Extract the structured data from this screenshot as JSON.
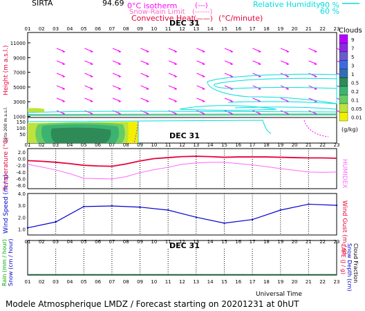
{
  "header": {
    "station": "SIRTA",
    "lon": "94.69",
    "isotherm_legend": "0°C isotherm",
    "isotherm_marker": "(---)",
    "snowrain_legend": "Snow-Rain Limit",
    "snowrain_marker": "(------)",
    "convheat_legend": "Convective Heat.",
    "convheat_marker": "(——)",
    "convheat_unit": "(°C/minute)",
    "rh_legend": "Relative Humidity",
    "rh_90": "90 %",
    "rh_60": "60 %",
    "date_label": "DEC 31",
    "colors": {
      "magenta": "#ff00ff",
      "red": "#e8003a",
      "cyan": "#00e0e0",
      "blue": "#0000cc"
    }
  },
  "hours": [
    "01",
    "02",
    "03",
    "04",
    "05",
    "06",
    "07",
    "08",
    "09",
    "10",
    "11",
    "12",
    "13",
    "14",
    "15",
    "16",
    "17",
    "18",
    "19",
    "20",
    "21",
    "22",
    "23"
  ],
  "panel1": {
    "ylabel": "Height (m a.s.l.)",
    "ylabel_low": "Up to 200 m a.s.l.",
    "yticks": [
      "11000",
      "9000",
      "7000",
      "5000",
      "3000",
      "1000"
    ],
    "yticks_low": [
      "150",
      "100",
      "50"
    ],
    "x_sub_ticks_label": "DEC 31"
  },
  "clouds": {
    "title": "Clouds",
    "levels": [
      "9",
      "7",
      "5",
      "3",
      "1",
      "0.5",
      "0.2",
      "0.1",
      "0.05",
      "0.01"
    ],
    "colors": [
      "#b800ff",
      "#8a2be2",
      "#6a5acd",
      "#4169e1",
      "#3070b0",
      "#2e8b57",
      "#3cb371",
      "#66cc66",
      "#bde33c",
      "#f0f000"
    ],
    "unit": "(g/kg)"
  },
  "panel2": {
    "ylabel": "Temperature (°C)",
    "ylabel_right": "HUMIDEX",
    "yticks": [
      "2.0",
      "0.0",
      "-2.0",
      "-4.0",
      "-6.0",
      "-8.0"
    ],
    "temp_color": "#e8003a",
    "humidex_color": "#ff66ff"
  },
  "panel3": {
    "ylabel": "Wind Speed (m / s)",
    "ylabel_right": "Wind Gust (m / s)",
    "yticks": [
      "4.0",
      "3.0",
      "2.0",
      "1.0"
    ],
    "line_color": "#0000cc"
  },
  "panel4": {
    "ylabel_a": "Rain (mm / hour)",
    "ylabel_b": "Snow (cm / hour)",
    "ylabel_right_a": "CAPE (J / g)",
    "ylabel_right_b": "Snow Depth (cm)",
    "ylabel_right_c": "Cloud Fraction",
    "date_label": "DEC 31",
    "xlabel": "Universal Time"
  },
  "footer": {
    "caption": "Modele Atmospherique LMDZ / Forecast starting on 20201231 at 0hUT"
  },
  "chart_data": [
    {
      "type": "line",
      "title": "",
      "xlabel": "Universal Time",
      "ylabel": "Temperature (°C)",
      "x": [
        "01",
        "02",
        "03",
        "04",
        "05",
        "06",
        "07",
        "08",
        "09",
        "10",
        "11",
        "12",
        "13",
        "14",
        "15",
        "16",
        "17",
        "18",
        "19",
        "20",
        "21",
        "22",
        "23"
      ],
      "ylim": [
        -9,
        3
      ],
      "series": [
        {
          "name": "Temperature",
          "values": [
            -0.6,
            -0.8,
            -1.1,
            -1.5,
            -2.0,
            -2.2,
            -2.3,
            -1.6,
            -0.7,
            0.0,
            0.3,
            0.6,
            0.7,
            0.6,
            0.4,
            0.5,
            0.5,
            0.5,
            0.4,
            0.3,
            0.2,
            0.2,
            0.1
          ]
        },
        {
          "name": "HUMIDEX",
          "values": [
            -1.7,
            -2.5,
            -3.4,
            -4.5,
            -5.9,
            -6.0,
            -6.1,
            -5.4,
            -4.2,
            -3.3,
            -2.6,
            -1.7,
            -1.3,
            -1.1,
            -1.1,
            -1.5,
            -1.9,
            -2.4,
            -3.0,
            -3.5,
            -4.0,
            -4.1,
            -4.0
          ]
        }
      ]
    },
    {
      "type": "line",
      "title": "",
      "xlabel": "Universal Time",
      "ylabel": "Wind Speed (m / s)",
      "x": [
        "01",
        "03",
        "05",
        "07",
        "09",
        "11",
        "13",
        "15",
        "17",
        "19",
        "21",
        "23"
      ],
      "ylim": [
        0.5,
        4.0
      ],
      "series": [
        {
          "name": "Wind Speed",
          "values": [
            1.1,
            1.6,
            2.9,
            2.95,
            2.85,
            2.6,
            2.0,
            1.5,
            1.8,
            2.6,
            3.1,
            3.0
          ]
        }
      ]
    }
  ]
}
